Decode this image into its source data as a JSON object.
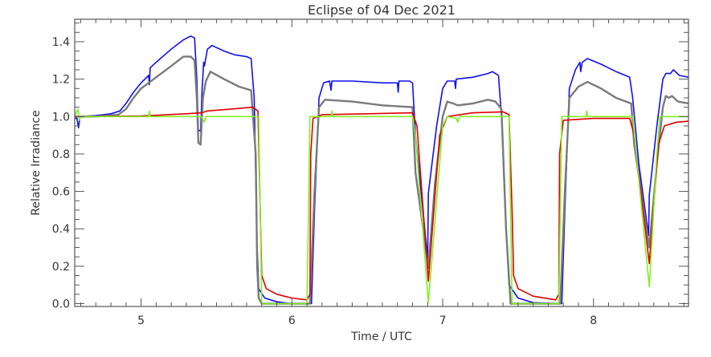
{
  "chart_data": {
    "type": "line",
    "title": "Eclipse of 04 Dec 2021",
    "xlabel": "Time / UTC",
    "ylabel": "Relative Irradiance",
    "xlim": [
      4.56,
      8.63
    ],
    "ylim": [
      -0.015,
      1.52
    ],
    "xticks": [
      5,
      6,
      7,
      8
    ],
    "xtick_labels": [
      "5",
      "6",
      "7",
      "8"
    ],
    "yticks": [
      0.0,
      0.2,
      0.4,
      0.6,
      0.8,
      1.0,
      1.2,
      1.4
    ],
    "ytick_labels": [
      "0.0",
      "0.2",
      "0.4",
      "0.6",
      "0.8",
      "1.0",
      "1.2",
      "1.4"
    ],
    "grid": false,
    "legend": "none",
    "series": [
      {
        "name": "blue",
        "color": "#1010f0",
        "points": [
          [
            4.56,
            0.99
          ],
          [
            4.575,
            0.99
          ],
          [
            4.585,
            0.94
          ],
          [
            4.595,
            1.0
          ],
          [
            4.7,
            1.005
          ],
          [
            4.8,
            1.015
          ],
          [
            4.86,
            1.03
          ],
          [
            4.9,
            1.07
          ],
          [
            4.95,
            1.13
          ],
          [
            5.0,
            1.18
          ],
          [
            5.05,
            1.22
          ],
          [
            5.055,
            1.17
          ],
          [
            5.06,
            1.26
          ],
          [
            5.1,
            1.29
          ],
          [
            5.2,
            1.36
          ],
          [
            5.28,
            1.41
          ],
          [
            5.33,
            1.43
          ],
          [
            5.355,
            1.42
          ],
          [
            5.37,
            1.2
          ],
          [
            5.38,
            0.93
          ],
          [
            5.395,
            0.92
          ],
          [
            5.405,
            1.15
          ],
          [
            5.41,
            1.22
          ],
          [
            5.415,
            1.29
          ],
          [
            5.42,
            1.27
          ],
          [
            5.44,
            1.36
          ],
          [
            5.47,
            1.38
          ],
          [
            5.55,
            1.35
          ],
          [
            5.62,
            1.33
          ],
          [
            5.7,
            1.32
          ],
          [
            5.73,
            1.31
          ],
          [
            5.75,
            1.1
          ],
          [
            5.77,
            0.3
          ],
          [
            5.78,
            0.08
          ],
          [
            5.82,
            0.03
          ],
          [
            5.9,
            0.01
          ],
          [
            6.0,
            0.0
          ],
          [
            6.13,
            0.0
          ],
          [
            6.15,
            0.5
          ],
          [
            6.18,
            1.1
          ],
          [
            6.21,
            1.18
          ],
          [
            6.25,
            1.19
          ],
          [
            6.26,
            1.14
          ],
          [
            6.265,
            1.19
          ],
          [
            6.4,
            1.19
          ],
          [
            6.6,
            1.18
          ],
          [
            6.7,
            1.18
          ],
          [
            6.705,
            1.13
          ],
          [
            6.71,
            1.19
          ],
          [
            6.78,
            1.19
          ],
          [
            6.8,
            1.18
          ],
          [
            6.82,
            0.9
          ],
          [
            6.9,
            0.24
          ],
          [
            6.905,
            0.59
          ],
          [
            6.96,
            0.95
          ],
          [
            7.0,
            1.15
          ],
          [
            7.03,
            1.19
          ],
          [
            7.08,
            1.19
          ],
          [
            7.085,
            1.15
          ],
          [
            7.09,
            1.2
          ],
          [
            7.2,
            1.21
          ],
          [
            7.3,
            1.23
          ],
          [
            7.33,
            1.24
          ],
          [
            7.37,
            1.22
          ],
          [
            7.39,
            1.0
          ],
          [
            7.42,
            0.4
          ],
          [
            7.44,
            0.1
          ],
          [
            7.5,
            0.03
          ],
          [
            7.6,
            0.005
          ],
          [
            7.79,
            0.0
          ],
          [
            7.81,
            0.5
          ],
          [
            7.84,
            1.15
          ],
          [
            7.88,
            1.25
          ],
          [
            7.91,
            1.29
          ],
          [
            7.915,
            1.24
          ],
          [
            7.925,
            1.29
          ],
          [
            7.96,
            1.31
          ],
          [
            8.05,
            1.28
          ],
          [
            8.15,
            1.24
          ],
          [
            8.24,
            1.21
          ],
          [
            8.26,
            1.1
          ],
          [
            8.3,
            0.75
          ],
          [
            8.365,
            0.365
          ],
          [
            8.37,
            0.58
          ],
          [
            8.42,
            0.95
          ],
          [
            8.46,
            1.2
          ],
          [
            8.48,
            1.23
          ],
          [
            8.51,
            1.23
          ],
          [
            8.53,
            1.25
          ],
          [
            8.57,
            1.22
          ],
          [
            8.63,
            1.21
          ]
        ]
      },
      {
        "name": "gray",
        "color": "#7a7a7a",
        "points": [
          [
            4.56,
            1.0
          ],
          [
            4.7,
            1.0
          ],
          [
            4.85,
            1.01
          ],
          [
            4.9,
            1.04
          ],
          [
            4.95,
            1.1
          ],
          [
            5.0,
            1.15
          ],
          [
            5.05,
            1.18
          ],
          [
            5.1,
            1.21
          ],
          [
            5.2,
            1.27
          ],
          [
            5.28,
            1.32
          ],
          [
            5.33,
            1.32
          ],
          [
            5.355,
            1.3
          ],
          [
            5.37,
            1.1
          ],
          [
            5.38,
            0.86
          ],
          [
            5.395,
            0.85
          ],
          [
            5.41,
            1.1
          ],
          [
            5.43,
            1.19
          ],
          [
            5.46,
            1.24
          ],
          [
            5.55,
            1.2
          ],
          [
            5.65,
            1.16
          ],
          [
            5.73,
            1.14
          ],
          [
            5.76,
            0.8
          ],
          [
            5.77,
            0.2
          ],
          [
            5.78,
            0.03
          ],
          [
            5.8,
            0.0
          ],
          [
            6.12,
            0.0
          ],
          [
            6.15,
            0.6
          ],
          [
            6.18,
            1.05
          ],
          [
            6.22,
            1.09
          ],
          [
            6.4,
            1.08
          ],
          [
            6.6,
            1.06
          ],
          [
            6.8,
            1.05
          ],
          [
            6.82,
            0.7
          ],
          [
            6.905,
            0.19
          ],
          [
            6.95,
            0.65
          ],
          [
            7.0,
            1.0
          ],
          [
            7.03,
            1.08
          ],
          [
            7.07,
            1.07
          ],
          [
            7.1,
            1.06
          ],
          [
            7.2,
            1.07
          ],
          [
            7.3,
            1.09
          ],
          [
            7.35,
            1.08
          ],
          [
            7.39,
            1.04
          ],
          [
            7.42,
            0.4
          ],
          [
            7.45,
            0.0
          ],
          [
            7.78,
            0.0
          ],
          [
            7.81,
            0.6
          ],
          [
            7.84,
            1.1
          ],
          [
            7.9,
            1.16
          ],
          [
            7.96,
            1.185
          ],
          [
            8.05,
            1.15
          ],
          [
            8.15,
            1.1
          ],
          [
            8.25,
            1.07
          ],
          [
            8.27,
            0.85
          ],
          [
            8.37,
            0.3
          ],
          [
            8.42,
            0.75
          ],
          [
            8.46,
            1.05
          ],
          [
            8.48,
            1.11
          ],
          [
            8.5,
            1.1
          ],
          [
            8.52,
            1.11
          ],
          [
            8.56,
            1.08
          ],
          [
            8.63,
            1.07
          ]
        ]
      },
      {
        "name": "red",
        "color": "#e00000",
        "points": [
          [
            4.56,
            1.0
          ],
          [
            5.0,
            1.003
          ],
          [
            5.05,
            1.005
          ],
          [
            5.055,
            1.02
          ],
          [
            5.06,
            1.005
          ],
          [
            5.3,
            1.015
          ],
          [
            5.4,
            1.02
          ],
          [
            5.44,
            1.03
          ],
          [
            5.6,
            1.04
          ],
          [
            5.74,
            1.05
          ],
          [
            5.775,
            1.03
          ],
          [
            5.79,
            0.5
          ],
          [
            5.8,
            0.15
          ],
          [
            5.83,
            0.08
          ],
          [
            5.9,
            0.05
          ],
          [
            6.0,
            0.03
          ],
          [
            6.1,
            0.02
          ],
          [
            6.12,
            0.05
          ],
          [
            6.125,
            0.8
          ],
          [
            6.14,
            0.99
          ],
          [
            6.2,
            1.01
          ],
          [
            6.5,
            1.015
          ],
          [
            6.8,
            1.02
          ],
          [
            6.83,
            0.95
          ],
          [
            6.905,
            0.12
          ],
          [
            6.98,
            0.9
          ],
          [
            7.03,
            1.0
          ],
          [
            7.2,
            1.02
          ],
          [
            7.4,
            1.025
          ],
          [
            7.44,
            1.01
          ],
          [
            7.46,
            0.5
          ],
          [
            7.47,
            0.15
          ],
          [
            7.5,
            0.08
          ],
          [
            7.6,
            0.04
          ],
          [
            7.75,
            0.02
          ],
          [
            7.77,
            0.05
          ],
          [
            7.775,
            0.8
          ],
          [
            7.8,
            0.98
          ],
          [
            8.0,
            0.99
          ],
          [
            8.24,
            0.99
          ],
          [
            8.27,
            0.9
          ],
          [
            8.37,
            0.215
          ],
          [
            8.43,
            0.85
          ],
          [
            8.47,
            0.95
          ],
          [
            8.55,
            0.97
          ],
          [
            8.63,
            0.975
          ]
        ]
      },
      {
        "name": "green",
        "color": "#80f020",
        "points": [
          [
            4.56,
            1.0
          ],
          [
            4.58,
            1.04
          ],
          [
            4.59,
            0.98
          ],
          [
            4.6,
            1.0
          ],
          [
            5.05,
            1.0
          ],
          [
            5.055,
            1.03
          ],
          [
            5.06,
            1.0
          ],
          [
            5.4,
            1.0
          ],
          [
            5.42,
            0.97
          ],
          [
            5.43,
            1.0
          ],
          [
            5.78,
            1.0
          ],
          [
            5.79,
            0.5
          ],
          [
            5.8,
            0.0
          ],
          [
            6.1,
            0.0
          ],
          [
            6.11,
            0.5
          ],
          [
            6.12,
            1.0
          ],
          [
            6.26,
            1.0
          ],
          [
            6.265,
            1.03
          ],
          [
            6.27,
            1.0
          ],
          [
            6.8,
            1.0
          ],
          [
            6.82,
            0.9
          ],
          [
            6.905,
            0.005
          ],
          [
            7.0,
            0.95
          ],
          [
            7.03,
            1.0
          ],
          [
            7.09,
            0.99
          ],
          [
            7.1,
            0.97
          ],
          [
            7.11,
            1.0
          ],
          [
            7.44,
            1.0
          ],
          [
            7.45,
            0.5
          ],
          [
            7.46,
            0.0
          ],
          [
            7.77,
            0.0
          ],
          [
            7.78,
            0.5
          ],
          [
            7.79,
            1.0
          ],
          [
            7.95,
            1.0
          ],
          [
            7.955,
            1.03
          ],
          [
            7.96,
            1.0
          ],
          [
            8.26,
            1.0
          ],
          [
            8.37,
            0.09
          ],
          [
            8.42,
            0.8
          ],
          [
            8.44,
            1.0
          ],
          [
            8.63,
            1.0
          ]
        ]
      }
    ]
  }
}
